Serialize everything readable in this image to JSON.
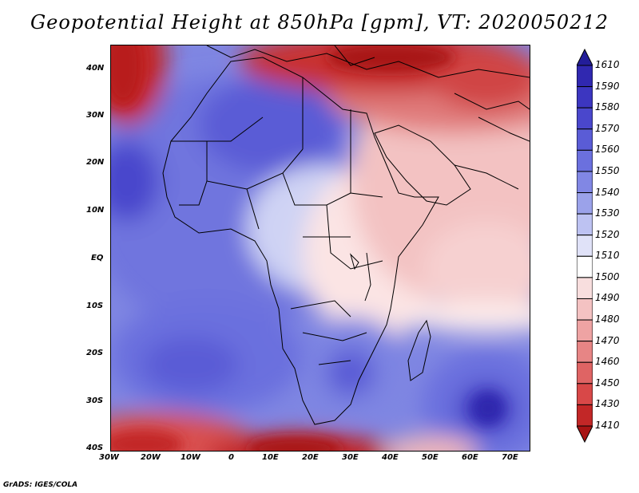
{
  "title": "Geopotential Height at 850hPa [gpm], VT: 2020050212",
  "credit": "GrADS: IGES/COLA",
  "latitude_labels": [
    "40N",
    "30N",
    "20N",
    "10N",
    "EQ",
    "10S",
    "20S",
    "30S",
    "40S"
  ],
  "longitude_labels": [
    "30W",
    "20W",
    "10W",
    "0",
    "10E",
    "20E",
    "30E",
    "40E",
    "50E",
    "60E",
    "70E"
  ],
  "colorbar": {
    "levels": [
      "1610",
      "1590",
      "1580",
      "1570",
      "1560",
      "1550",
      "1540",
      "1530",
      "1520",
      "1510",
      "1500",
      "1490",
      "1480",
      "1470",
      "1460",
      "1450",
      "1430",
      "1410"
    ],
    "colors": [
      "#231d99",
      "#3028b0",
      "#3c36c0",
      "#4a47cc",
      "#5a5cd6",
      "#6b70de",
      "#8187e4",
      "#9ba2ea",
      "#bdc2f2",
      "#e0e2f8",
      "#ffffff",
      "#f8dede",
      "#f4c2c2",
      "#eea3a3",
      "#e78585",
      "#df6464",
      "#d84848",
      "#c22727",
      "#a81414"
    ]
  },
  "colors": {
    "deep_red": "#b81c1c",
    "red": "#e06666",
    "light_red": "#f2b8b8",
    "pale": "#fbe8e8",
    "white": "#ffffff",
    "pale_blue": "#d8dbf6",
    "light_blue": "#9ea6ea",
    "blue": "#6f75de",
    "deep_blue": "#3c36c0"
  }
}
